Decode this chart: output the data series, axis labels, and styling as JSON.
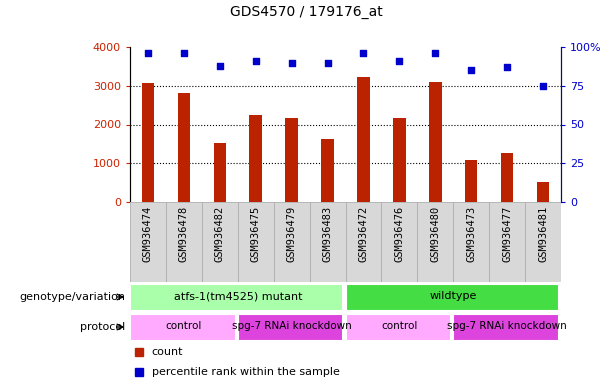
{
  "title": "GDS4570 / 179176_at",
  "samples": [
    "GSM936474",
    "GSM936478",
    "GSM936482",
    "GSM936475",
    "GSM936479",
    "GSM936483",
    "GSM936472",
    "GSM936476",
    "GSM936480",
    "GSM936473",
    "GSM936477",
    "GSM936481"
  ],
  "counts": [
    3060,
    2820,
    1520,
    2250,
    2180,
    1620,
    3220,
    2180,
    3100,
    1080,
    1260,
    520
  ],
  "percentile_ranks": [
    96,
    96,
    88,
    91,
    90,
    90,
    96,
    91,
    96,
    85,
    87,
    75
  ],
  "ylim_left": [
    0,
    4000
  ],
  "ylim_right": [
    0,
    100
  ],
  "yticks_left": [
    0,
    1000,
    2000,
    3000,
    4000
  ],
  "yticks_right": [
    0,
    25,
    50,
    75,
    100
  ],
  "bar_color": "#bb2200",
  "dot_color": "#0000cc",
  "genotype_groups": [
    {
      "label": "atfs-1(tm4525) mutant",
      "start": 0,
      "end": 6,
      "color": "#aaffaa"
    },
    {
      "label": "wildtype",
      "start": 6,
      "end": 12,
      "color": "#44dd44"
    }
  ],
  "protocol_groups": [
    {
      "label": "control",
      "start": 0,
      "end": 3,
      "color": "#ffaaff"
    },
    {
      "label": "spg-7 RNAi knockdown",
      "start": 3,
      "end": 6,
      "color": "#dd44dd"
    },
    {
      "label": "control",
      "start": 6,
      "end": 9,
      "color": "#ffaaff"
    },
    {
      "label": "spg-7 RNAi knockdown",
      "start": 9,
      "end": 12,
      "color": "#dd44dd"
    }
  ],
  "legend_count_label": "count",
  "legend_pct_label": "percentile rank within the sample",
  "genotype_label": "genotype/variation",
  "protocol_label": "protocol",
  "tick_label_color_left": "#cc2200",
  "tick_label_color_right": "#0000cc",
  "grid_yticks": [
    1000,
    2000,
    3000
  ]
}
